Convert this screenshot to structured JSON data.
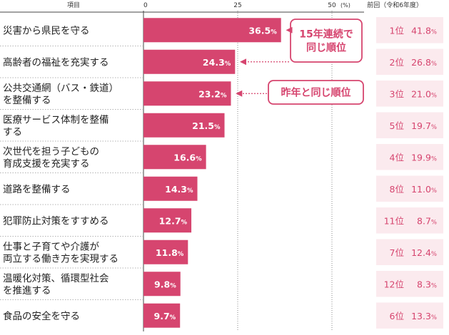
{
  "header": {
    "item_label": "項目",
    "axis_unit": "(%)",
    "prev_label": "前回（令和6年度）"
  },
  "colors": {
    "bar": "#d6456f",
    "accent": "#d6456f",
    "prev_bg": "#fbeaee",
    "grid": "#8a8a8a"
  },
  "callouts": [
    {
      "lines": [
        "15年連続で",
        "同じ順位"
      ],
      "targets": [
        0,
        1
      ]
    },
    {
      "lines": [
        "昨年と同じ順位"
      ],
      "targets": [
        2
      ]
    }
  ],
  "chart_data": {
    "type": "bar",
    "orientation": "horizontal",
    "xlim": [
      0,
      50
    ],
    "x_ticks": [
      0,
      25,
      50
    ],
    "unit": "%",
    "categories": [
      [
        "災害から県民を守る"
      ],
      [
        "高齢者の福祉を充実する"
      ],
      [
        "公共交通網（バス・鉄道）",
        "を整備する"
      ],
      [
        "医療サービス体制を整備",
        "する"
      ],
      [
        "次世代を担う子どもの",
        "育成支援を充実する"
      ],
      [
        "道路を整備する"
      ],
      [
        "犯罪防止対策をすすめる"
      ],
      [
        "仕事と子育てや介護が",
        "両立する働き方を実現する"
      ],
      [
        "温暖化対策、循環型社会",
        "を推進する"
      ],
      [
        "食品の安全を守る"
      ]
    ],
    "series": [
      {
        "values": [
          36.5,
          24.3,
          23.2,
          21.5,
          16.6,
          14.3,
          12.7,
          11.8,
          9.8,
          9.7
        ]
      }
    ],
    "previous": {
      "ranks": [
        1,
        2,
        3,
        5,
        4,
        8,
        11,
        7,
        12,
        6
      ],
      "values": [
        41.8,
        26.8,
        21.0,
        19.7,
        19.9,
        11.0,
        8.7,
        12.4,
        8.3,
        13.3
      ]
    }
  }
}
